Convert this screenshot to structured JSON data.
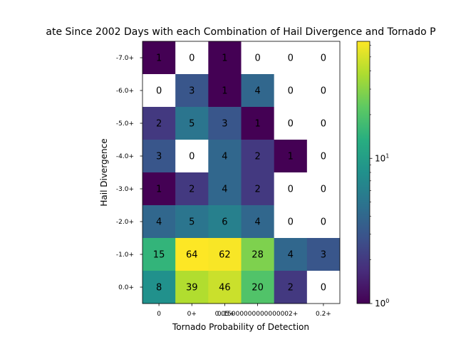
{
  "chart_data": {
    "type": "heatmap",
    "title": "ate Since 2002 Days with each Combination of Hail Divergence and Tornado P",
    "xlabel": "Tornado Probability of Detection",
    "ylabel": "Hail Divergence",
    "x_categories": [
      "0",
      "0+",
      "0.05+",
      "0.15000000000000002+",
      "0.2+"
    ],
    "x_category_positions": [
      0,
      1,
      2,
      3,
      5
    ],
    "y_categories": [
      "-7.0+",
      "-6.0+",
      "-5.0+",
      "-4.0+",
      "-3.0+",
      "-2.0+",
      "-1.0+",
      "0.0+"
    ],
    "values": [
      [
        1,
        0,
        1,
        0,
        0,
        0
      ],
      [
        0,
        3,
        1,
        4,
        0,
        0
      ],
      [
        2,
        5,
        3,
        1,
        0,
        0
      ],
      [
        3,
        0,
        4,
        2,
        1,
        0
      ],
      [
        1,
        2,
        4,
        2,
        0,
        0
      ],
      [
        4,
        5,
        6,
        4,
        0,
        0
      ],
      [
        15,
        64,
        62,
        28,
        4,
        3
      ],
      [
        8,
        39,
        46,
        20,
        2,
        0
      ]
    ],
    "color_scale": "log",
    "colormap": "viridis",
    "zero_color": "#ffffff",
    "vmin": 1,
    "vmax": 64,
    "colorbar_ticks": [
      {
        "value": 1,
        "base": "10",
        "exp": "0"
      },
      {
        "value": 10,
        "base": "10",
        "exp": "1"
      }
    ],
    "grid": false
  }
}
